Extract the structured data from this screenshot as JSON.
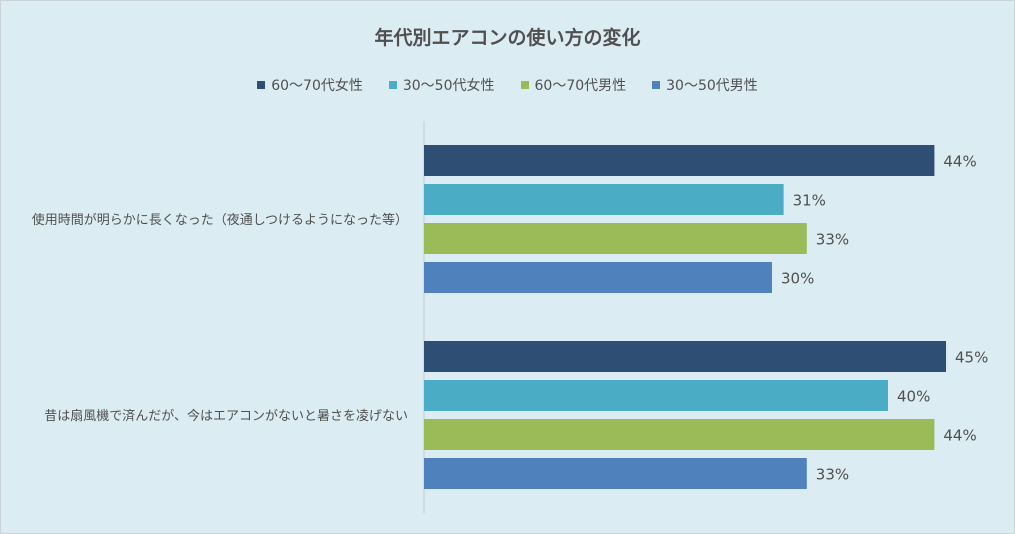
{
  "chart_data": {
    "type": "bar",
    "orientation": "horizontal",
    "title": "年代別エアコンの使い方の変化",
    "categories": [
      "使用時間が明らかに長くなった（夜通しつけるようになった等）",
      "昔は扇風機で済んだが、今はエアコンがないと暑さを凌げない"
    ],
    "series": [
      {
        "name": "60～70代女性",
        "color": "#2e4e74",
        "values": [
          44,
          45
        ]
      },
      {
        "name": "30～50代女性",
        "color": "#4bacc6",
        "values": [
          31,
          40
        ]
      },
      {
        "name": "60～70代男性",
        "color": "#9bbb59",
        "values": [
          33,
          44
        ]
      },
      {
        "name": "30～50代男性",
        "color": "#4f81bd",
        "values": [
          30,
          33
        ]
      }
    ],
    "value_suffix": "%",
    "legend_position": "top",
    "grid": false
  }
}
